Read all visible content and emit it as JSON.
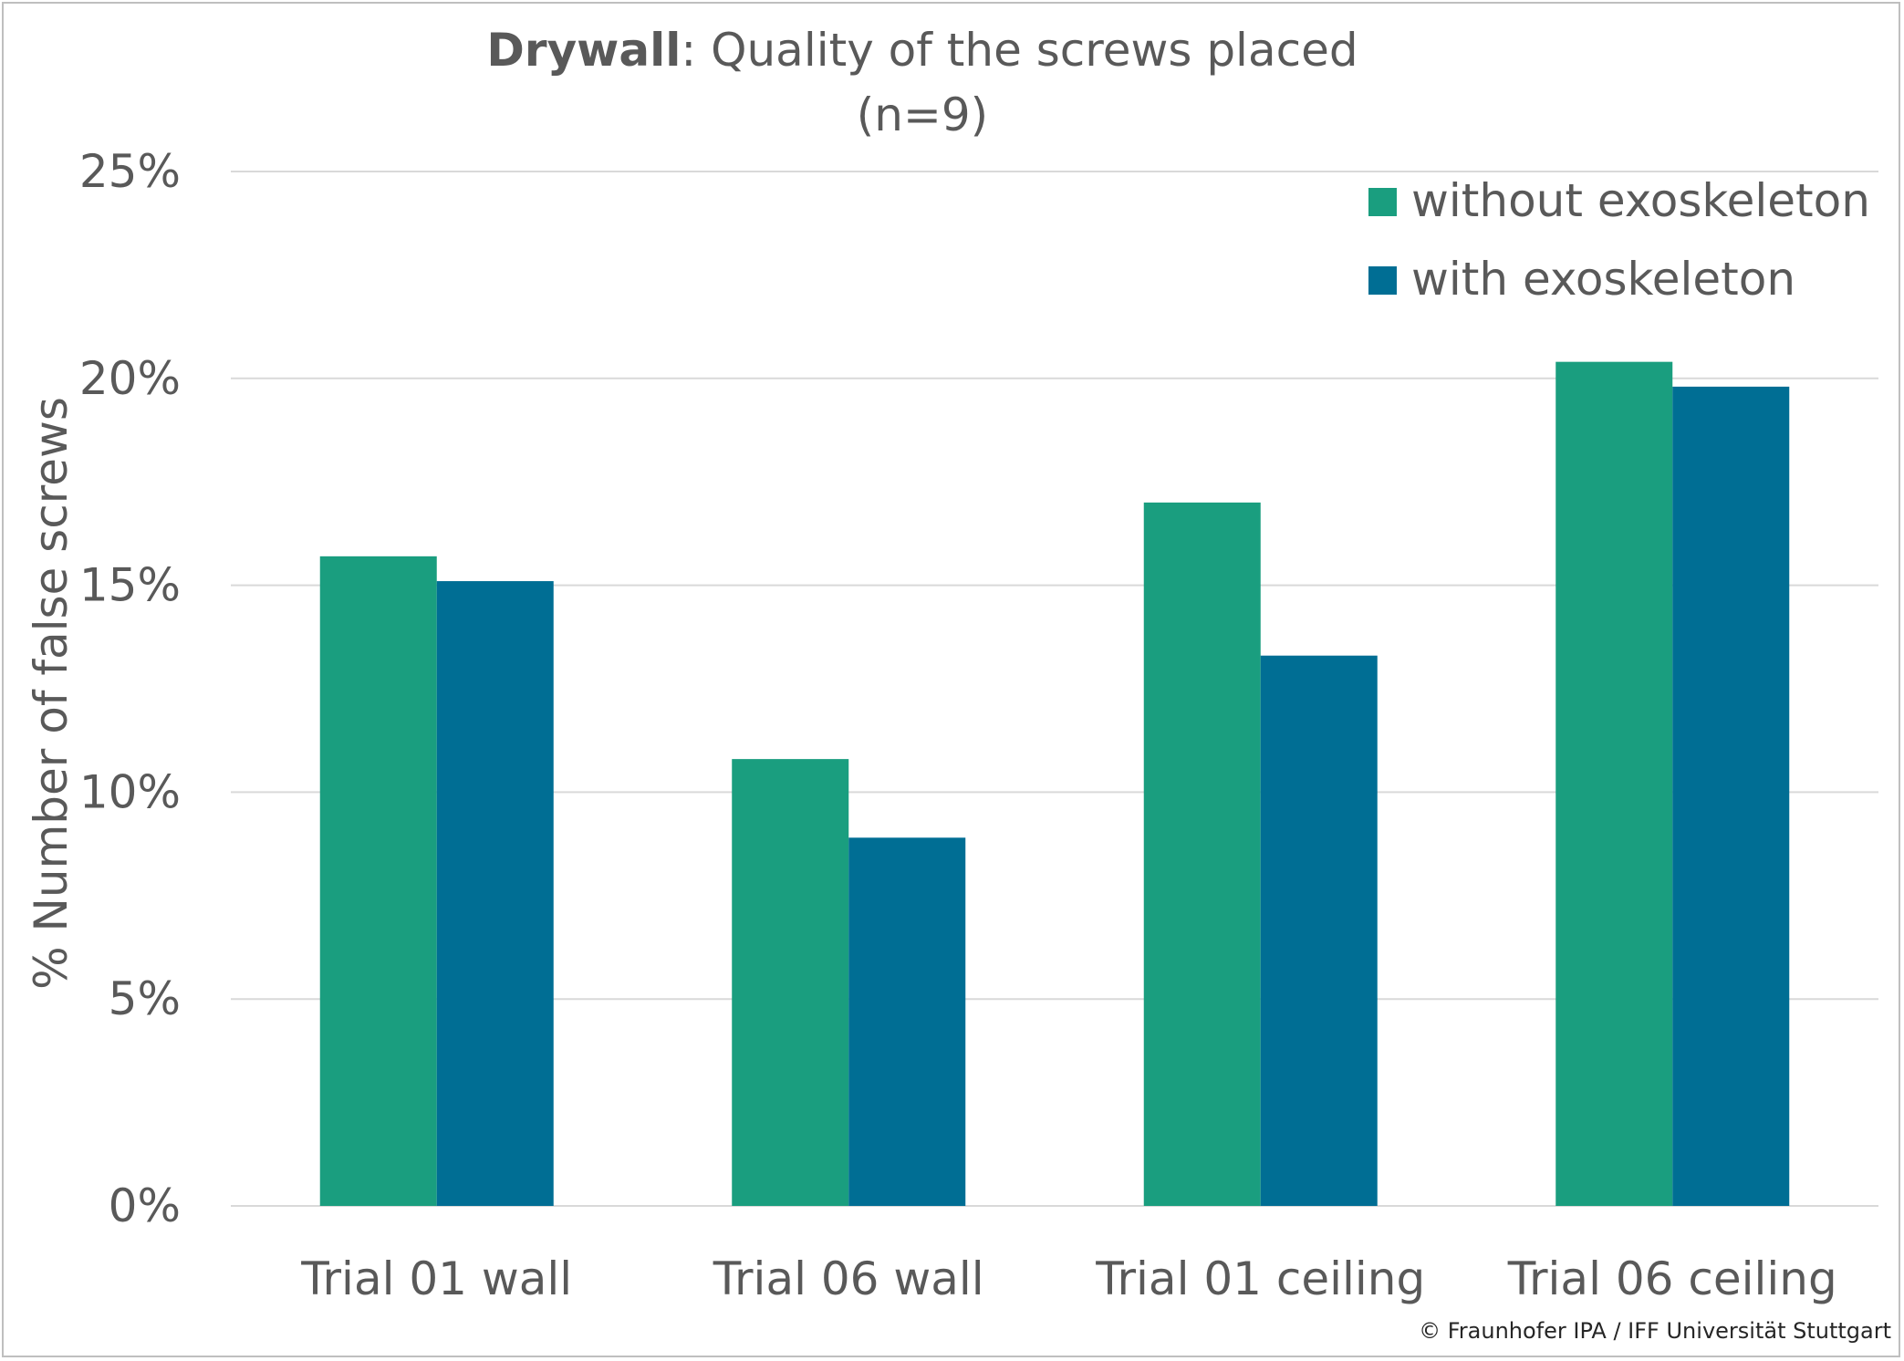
{
  "chart_data": {
    "type": "bar",
    "title_bold": "Drywall",
    "title_rest": ": Quality of the screws placed",
    "subtitle": "(n=9)",
    "xlabel": "",
    "ylabel": "% Number of false screws",
    "ylim": [
      0,
      25
    ],
    "yticks": [
      "0%",
      "5%",
      "10%",
      "15%",
      "20%",
      "25%"
    ],
    "ytick_values": [
      0,
      5,
      10,
      15,
      20,
      25
    ],
    "grid": true,
    "legend_position": "top-right",
    "categories": [
      "Trial 01 wall",
      "Trial 06 wall",
      "Trial 01 ceiling",
      "Trial 06 ceiling"
    ],
    "series": [
      {
        "name": "without exoskeleton",
        "color": "#1a9e7f",
        "values": [
          15.7,
          10.8,
          17.0,
          20.4
        ]
      },
      {
        "name": "with exoskeleton",
        "color": "#006e94",
        "values": [
          15.1,
          8.9,
          13.3,
          19.8
        ]
      }
    ],
    "copyright": "© Fraunhofer IPA / IFF Universität Stuttgart"
  }
}
